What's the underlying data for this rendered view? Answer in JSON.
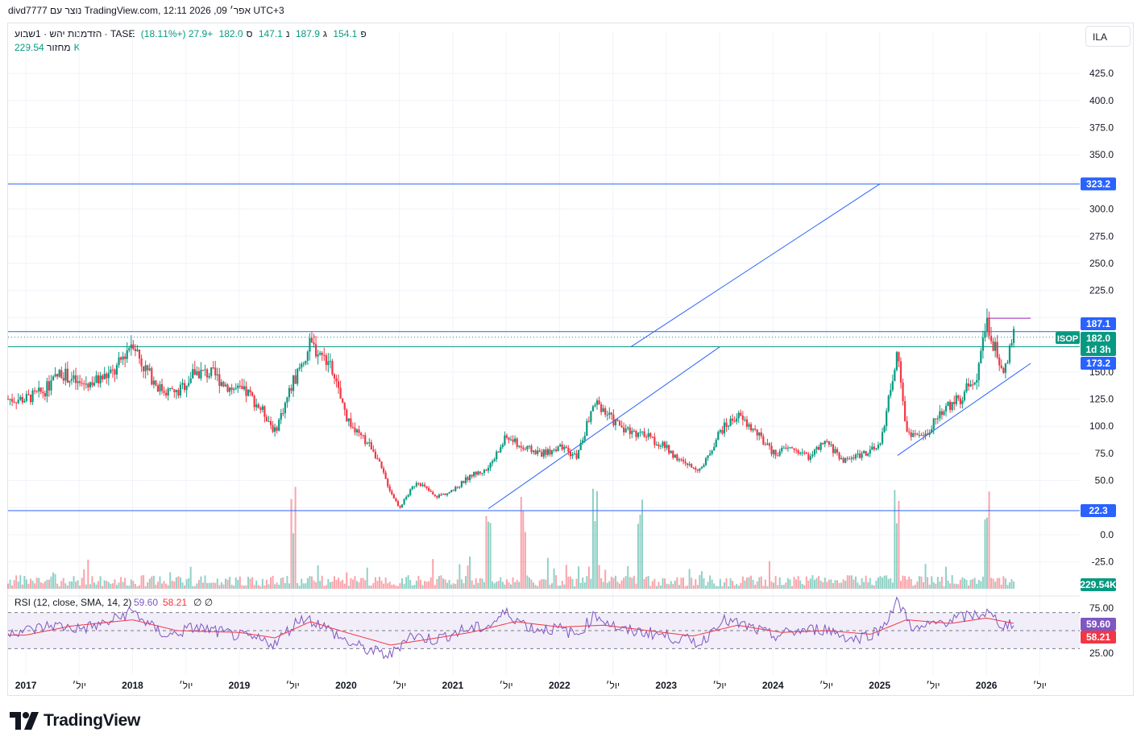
{
  "header": {
    "caption": "divd7777 נוצר עם TradingView.com, 12:11 2026 ,09 אפר׳ UTC+3"
  },
  "legend": {
    "title": "הזדמנות יהש · 1שבוע · TASE",
    "open_label": "פ",
    "open_value": "154.1",
    "high_label": "ג",
    "high_value": "187.9",
    "low_label": "נ",
    "low_value": "147.1",
    "close_label": "ס",
    "close_value": "182.0",
    "change": "+27.9 (+18.11%)",
    "volume_label": "מחזור",
    "volume_value": "229.54K"
  },
  "currency_button": "ILA",
  "brand": "TradingView",
  "colors": {
    "up": "#089981",
    "down": "#f23645",
    "line_blue": "#2962ff",
    "line_green": "#089981",
    "rsi_line": "#7e57c2",
    "rsi_ma": "#f23645",
    "rsi_band": "#ede7f6"
  },
  "chart_data": {
    "type": "candlestick",
    "symbol": "ISOP",
    "interval": "1W",
    "y_axis_ticks": [
      "425.0",
      "400.0",
      "375.0",
      "350.0",
      "300.0",
      "275.0",
      "250.0",
      "225.0",
      "150.0",
      "125.0",
      "100.0",
      "75.0",
      "50.0",
      "0.0",
      "-25.0"
    ],
    "x_axis_labels": [
      "2017",
      "יול׳",
      "2018",
      "יול׳",
      "2019",
      "יול׳",
      "2020",
      "יול׳",
      "2021",
      "יול׳",
      "2022",
      "יול׳",
      "2023",
      "יול׳",
      "2024",
      "יול׳",
      "2025",
      "יול׳",
      "2026",
      "יול׳"
    ],
    "price_labels": [
      {
        "text": "323.2",
        "value": 323.2,
        "kind": "line"
      },
      {
        "text": "187.1",
        "value": 187.1,
        "kind": "line"
      },
      {
        "text": "182.0",
        "value": 182.0,
        "kind": "last"
      },
      {
        "text": "1d 3h",
        "kind": "countdown"
      },
      {
        "text": "173.2",
        "value": 173.2,
        "kind": "line"
      },
      {
        "text": "22.3",
        "value": 22.3,
        "kind": "line"
      }
    ],
    "symbol_tag": "ISOP",
    "volume_tag": "229.54K",
    "horizontal_lines": [
      323.2,
      187.1,
      173.2,
      22.3
    ],
    "resistance_line": 199.5,
    "trend_lines": [
      {
        "from": [
          "2021-05",
          24
        ],
        "to": [
          "2023-07",
          173
        ]
      },
      {
        "from": [
          "2022-09",
          173
        ],
        "to": [
          "2025-01",
          323
        ]
      },
      {
        "from": [
          "2025-03",
          73
        ],
        "to": [
          "2026-06",
          158
        ]
      }
    ],
    "price_path": [
      [
        "2017-01",
        125
      ],
      [
        "2017-03",
        132
      ],
      [
        "2017-05",
        150
      ],
      [
        "2017-07",
        138
      ],
      [
        "2017-09",
        142
      ],
      [
        "2017-11",
        150
      ],
      [
        "2018-01",
        180
      ],
      [
        "2018-02",
        158
      ],
      [
        "2018-04",
        135
      ],
      [
        "2018-06",
        130
      ],
      [
        "2018-08",
        150
      ],
      [
        "2018-10",
        148
      ],
      [
        "2018-12",
        135
      ],
      [
        "2019-02",
        130
      ],
      [
        "2019-04",
        110
      ],
      [
        "2019-05",
        95
      ],
      [
        "2019-07",
        140
      ],
      [
        "2019-09",
        175
      ],
      [
        "2019-11",
        160
      ],
      [
        "2020-01",
        110
      ],
      [
        "2020-02",
        95
      ],
      [
        "2020-04",
        80
      ],
      [
        "2020-06",
        40
      ],
      [
        "2020-07",
        25
      ],
      [
        "2020-09",
        50
      ],
      [
        "2020-11",
        35
      ],
      [
        "2021-01",
        40
      ],
      [
        "2021-03",
        55
      ],
      [
        "2021-05",
        60
      ],
      [
        "2021-07",
        90
      ],
      [
        "2021-09",
        80
      ],
      [
        "2021-11",
        75
      ],
      [
        "2022-01",
        80
      ],
      [
        "2022-03",
        72
      ],
      [
        "2022-05",
        125
      ],
      [
        "2022-07",
        105
      ],
      [
        "2022-09",
        95
      ],
      [
        "2022-11",
        90
      ],
      [
        "2023-01",
        80
      ],
      [
        "2023-03",
        65
      ],
      [
        "2023-05",
        60
      ],
      [
        "2023-07",
        95
      ],
      [
        "2023-09",
        110
      ],
      [
        "2023-11",
        95
      ],
      [
        "2024-01",
        75
      ],
      [
        "2024-03",
        80
      ],
      [
        "2024-05",
        72
      ],
      [
        "2024-07",
        85
      ],
      [
        "2024-09",
        68
      ],
      [
        "2024-11",
        75
      ],
      [
        "2025-01",
        80
      ],
      [
        "2025-03",
        170
      ],
      [
        "2025-04",
        95
      ],
      [
        "2025-06",
        90
      ],
      [
        "2025-08",
        115
      ],
      [
        "2025-10",
        125
      ],
      [
        "2025-12",
        150
      ],
      [
        "2026-01",
        195
      ],
      [
        "2026-02",
        170
      ],
      [
        "2026-03",
        154
      ],
      [
        "2026-04",
        182
      ]
    ],
    "volume_spikes": [
      "2019-07",
      "2021-05",
      "2021-09",
      "2022-05",
      "2022-10",
      "2025-03",
      "2026-01"
    ],
    "rsi": {
      "label": "RSI (12, close, SMA, 14, 2)",
      "value": "59.60",
      "ma_value": "58.21",
      "extra": "∅ ∅",
      "ticks": [
        "75.00",
        "25.00"
      ],
      "bands": [
        70,
        50,
        30
      ],
      "range": [
        15,
        90
      ],
      "path": [
        [
          "2017-01",
          50
        ],
        [
          "2017-04",
          56
        ],
        [
          "2017-07",
          52
        ],
        [
          "2017-10",
          58
        ],
        [
          "2018-01",
          72
        ],
        [
          "2018-03",
          55
        ],
        [
          "2018-05",
          44
        ],
        [
          "2018-08",
          54
        ],
        [
          "2018-11",
          48
        ],
        [
          "2019-02",
          42
        ],
        [
          "2019-05",
          36
        ],
        [
          "2019-08",
          65
        ],
        [
          "2019-10",
          58
        ],
        [
          "2020-01",
          38
        ],
        [
          "2020-03",
          30
        ],
        [
          "2020-06",
          22
        ],
        [
          "2020-08",
          45
        ],
        [
          "2020-11",
          40
        ],
        [
          "2021-02",
          50
        ],
        [
          "2021-05",
          55
        ],
        [
          "2021-07",
          70
        ],
        [
          "2021-10",
          52
        ],
        [
          "2022-01",
          52
        ],
        [
          "2022-03",
          45
        ],
        [
          "2022-05",
          68
        ],
        [
          "2022-08",
          50
        ],
        [
          "2022-11",
          48
        ],
        [
          "2023-02",
          42
        ],
        [
          "2023-05",
          36
        ],
        [
          "2023-07",
          62
        ],
        [
          "2023-10",
          55
        ],
        [
          "2024-01",
          44
        ],
        [
          "2024-04",
          50
        ],
        [
          "2024-07",
          52
        ],
        [
          "2024-10",
          40
        ],
        [
          "2025-01",
          50
        ],
        [
          "2025-03",
          82
        ],
        [
          "2025-05",
          50
        ],
        [
          "2025-08",
          60
        ],
        [
          "2025-11",
          66
        ],
        [
          "2026-01",
          70
        ],
        [
          "2026-03",
          55
        ],
        [
          "2026-04",
          59.6
        ]
      ],
      "ma_path": [
        [
          "2017-01",
          45
        ],
        [
          "2017-06",
          55
        ],
        [
          "2018-01",
          62
        ],
        [
          "2018-06",
          50
        ],
        [
          "2019-01",
          48
        ],
        [
          "2019-05",
          42
        ],
        [
          "2019-09",
          60
        ],
        [
          "2020-01",
          48
        ],
        [
          "2020-06",
          34
        ],
        [
          "2020-10",
          40
        ],
        [
          "2021-03",
          48
        ],
        [
          "2021-08",
          60
        ],
        [
          "2022-01",
          54
        ],
        [
          "2022-06",
          56
        ],
        [
          "2022-11",
          50
        ],
        [
          "2023-04",
          44
        ],
        [
          "2023-09",
          56
        ],
        [
          "2024-02",
          48
        ],
        [
          "2024-07",
          50
        ],
        [
          "2024-12",
          46
        ],
        [
          "2025-04",
          62
        ],
        [
          "2025-09",
          58
        ],
        [
          "2026-01",
          64
        ],
        [
          "2026-04",
          58.21
        ]
      ]
    }
  }
}
